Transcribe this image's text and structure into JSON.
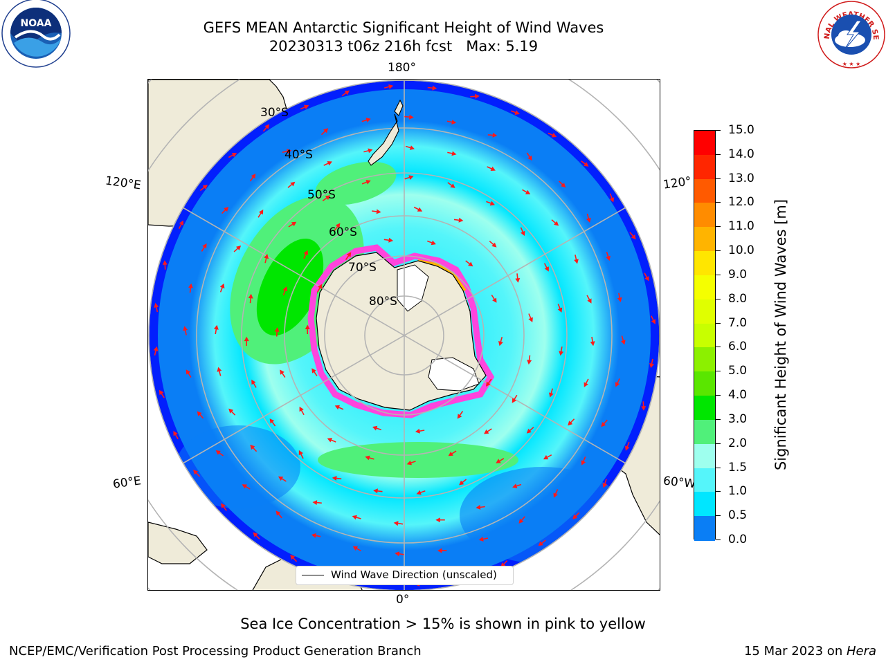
{
  "title": {
    "line1": "GEFS MEAN Antarctic Significant Height of Wind Waves",
    "line2": "20230313 t06z 216h fcst   Max: 5.19"
  },
  "map": {
    "projection": "south-polar-stereographic",
    "lon_labels": [
      "180°",
      "120°E",
      "120°",
      "60°E",
      "60°W",
      "0°"
    ],
    "lat_labels": [
      "30°S",
      "40°S",
      "50°S",
      "60°S",
      "70°S",
      "80°S"
    ],
    "legend_label": "Wind Wave Direction (unscaled)",
    "colors": {
      "land": "#efebd9",
      "ice_sheet": "#ffffff",
      "gridline": "#b4b4b4",
      "arrow": "#ff1a1a",
      "sea_ice_edge": "#ff44dd"
    }
  },
  "colorbar": {
    "label": "Significant Height of Wind Waves [m]",
    "ticks": [
      "15.0",
      "14.0",
      "13.0",
      "12.0",
      "11.0",
      "10.0",
      "9.0",
      "8.0",
      "7.0",
      "6.0",
      "5.0",
      "4.0",
      "3.0",
      "2.0",
      "1.5",
      "1.0",
      "0.5",
      "0.0"
    ],
    "colors": [
      "#ff0000",
      "#ff2600",
      "#ff5a00",
      "#ff8c00",
      "#ffb400",
      "#ffe600",
      "#f5ff00",
      "#e0ff00",
      "#c8ff00",
      "#8cf000",
      "#5ae600",
      "#00e600",
      "#50f07a",
      "#9effee",
      "#55f5fa",
      "#00e6ff",
      "#0a7ef5",
      "#0000ff"
    ]
  },
  "note": "Sea Ice Concentration > 15% is shown in pink to yellow",
  "footer": {
    "left": "NCEP/EMC/Verification Post Processing Product Generation Branch",
    "right_prefix": "15 Mar 2023 on ",
    "right_system": "Hera"
  },
  "logos": {
    "left": "NOAA",
    "right": "NATIONAL WEATHER SERVICE"
  }
}
